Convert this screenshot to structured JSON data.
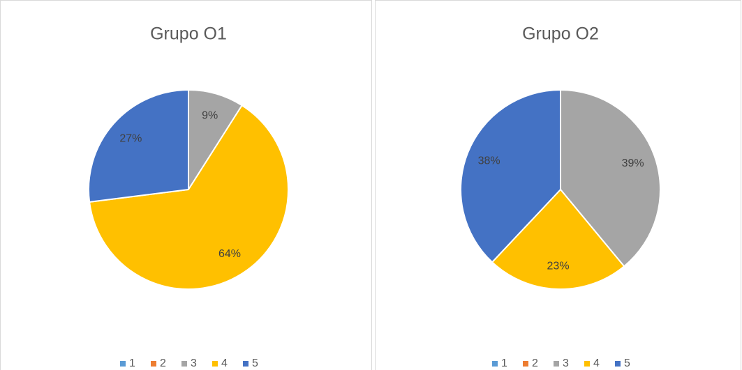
{
  "chart_data": [
    {
      "type": "pie",
      "title": "Grupo O1",
      "categories": [
        "1",
        "2",
        "3",
        "4",
        "5"
      ],
      "values": [
        0,
        0,
        9,
        64,
        27
      ],
      "value_labels": [
        null,
        null,
        "9%",
        "64%",
        "27%"
      ],
      "colors": [
        "#5b9bd5",
        "#ed7d31",
        "#a5a5a5",
        "#ffc000",
        "#4472c4"
      ],
      "legend": "bottom"
    },
    {
      "type": "pie",
      "title": "Grupo O2",
      "categories": [
        "1",
        "2",
        "3",
        "4",
        "5"
      ],
      "values": [
        0,
        0,
        39,
        23,
        38
      ],
      "value_labels": [
        null,
        null,
        "39%",
        "23%",
        "38%"
      ],
      "colors": [
        "#5b9bd5",
        "#ed7d31",
        "#a5a5a5",
        "#ffc000",
        "#4472c4"
      ],
      "legend": "bottom"
    }
  ]
}
